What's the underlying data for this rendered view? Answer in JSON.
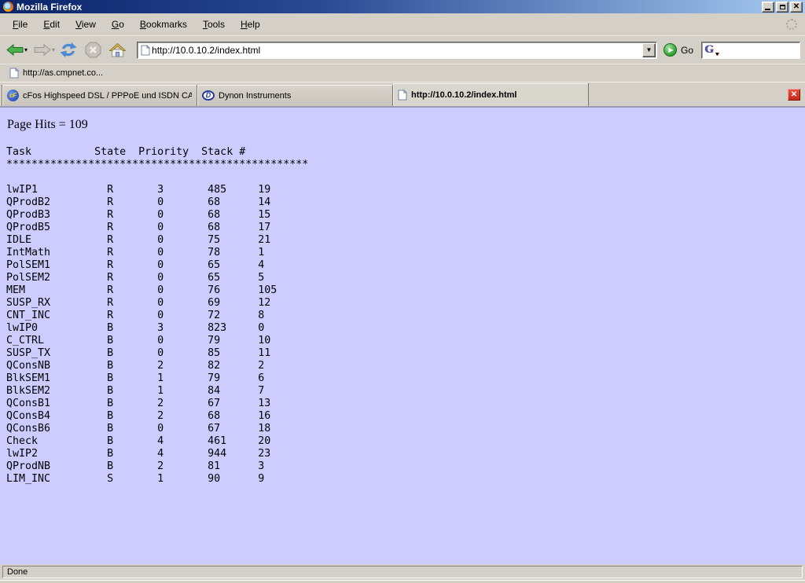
{
  "window": {
    "title": "Mozilla Firefox",
    "controls": {
      "minimize": "minimize",
      "restore": "restore",
      "close": "close"
    }
  },
  "menu": {
    "items": [
      "File",
      "Edit",
      "View",
      "Go",
      "Bookmarks",
      "Tools",
      "Help"
    ]
  },
  "navbar": {
    "url": "http://10.0.10.2/index.html",
    "go_label": "Go",
    "search_value": "",
    "search_engine": "Google"
  },
  "bookmarks_bar": {
    "items": [
      {
        "label": "http://as.cmpnet.co..."
      }
    ]
  },
  "tabs": [
    {
      "label": "cFos Highspeed DSL / PPPoE und ISDN CAP...",
      "icon": "cfos-icon",
      "active": false
    },
    {
      "label": "Dynon Instruments",
      "icon": "dynon-icon",
      "active": false
    },
    {
      "label": "http://10.0.10.2/index.html",
      "icon": "document-icon",
      "active": true
    }
  ],
  "page": {
    "hits_line": "Page Hits = 109",
    "table": {
      "columns": [
        "Task",
        "State",
        "Priority",
        "Stack",
        "#"
      ],
      "header": "Task          State  Priority  Stack #",
      "separator": "************************************************",
      "rows": [
        [
          "lwIP1",
          "R",
          "3",
          "485",
          "19"
        ],
        [
          "QProdB2",
          "R",
          "0",
          "68",
          "14"
        ],
        [
          "QProdB3",
          "R",
          "0",
          "68",
          "15"
        ],
        [
          "QProdB5",
          "R",
          "0",
          "68",
          "17"
        ],
        [
          "IDLE",
          "R",
          "0",
          "75",
          "21"
        ],
        [
          "IntMath",
          "R",
          "0",
          "78",
          "1"
        ],
        [
          "PolSEM1",
          "R",
          "0",
          "65",
          "4"
        ],
        [
          "PolSEM2",
          "R",
          "0",
          "65",
          "5"
        ],
        [
          "MEM",
          "R",
          "0",
          "76",
          "105"
        ],
        [
          "SUSP_RX",
          "R",
          "0",
          "69",
          "12"
        ],
        [
          "CNT_INC",
          "R",
          "0",
          "72",
          "8"
        ],
        [
          "lwIP0",
          "B",
          "3",
          "823",
          "0"
        ],
        [
          "C_CTRL",
          "B",
          "0",
          "79",
          "10"
        ],
        [
          "SUSP_TX",
          "B",
          "0",
          "85",
          "11"
        ],
        [
          "QConsNB",
          "B",
          "2",
          "82",
          "2"
        ],
        [
          "BlkSEM1",
          "B",
          "1",
          "79",
          "6"
        ],
        [
          "BlkSEM2",
          "B",
          "1",
          "84",
          "7"
        ],
        [
          "QConsB1",
          "B",
          "2",
          "67",
          "13"
        ],
        [
          "QConsB4",
          "B",
          "2",
          "68",
          "16"
        ],
        [
          "QConsB6",
          "B",
          "0",
          "67",
          "18"
        ],
        [
          "Check",
          "B",
          "4",
          "461",
          "20"
        ],
        [
          "lwIP2",
          "B",
          "4",
          "944",
          "23"
        ],
        [
          "QProdNB",
          "B",
          "2",
          "81",
          "3"
        ],
        [
          "LIM_INC",
          "S",
          "1",
          "90",
          "9"
        ]
      ]
    }
  },
  "statusbar": {
    "text": "Done"
  },
  "colors": {
    "page_bg": "#ccccff",
    "chrome_bg": "#d4d0c8",
    "titlebar_start": "#0a246a",
    "titlebar_end": "#a6caf0",
    "close_tab_red": "#d33420"
  }
}
